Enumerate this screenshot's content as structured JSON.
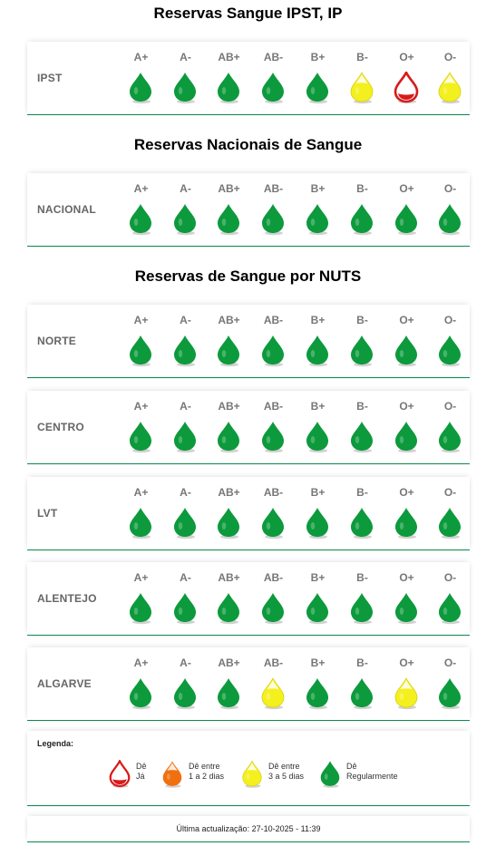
{
  "colors": {
    "green": "#0c9a3c",
    "yellow": "#f4f01e",
    "orange": "#f07010",
    "red": "#d81a1a",
    "line": "#0a8a4a"
  },
  "ipst": {
    "title": "Reservas Sangue IPST, IP",
    "rows": [
      {
        "name": "IPST",
        "levels": [
          "green",
          "green",
          "green",
          "green",
          "green",
          "yellow",
          "red",
          "yellow"
        ]
      }
    ]
  },
  "nacional": {
    "title": "Reservas Nacionais de Sangue",
    "rows": [
      {
        "name": "NACIONAL",
        "levels": [
          "green",
          "green",
          "green",
          "green",
          "green",
          "green",
          "green",
          "green"
        ]
      }
    ]
  },
  "nuts": {
    "title": "Reservas de Sangue por NUTS",
    "rows": [
      {
        "name": "NORTE",
        "levels": [
          "green",
          "green",
          "green",
          "green",
          "green",
          "green",
          "green",
          "green"
        ]
      },
      {
        "name": "CENTRO",
        "levels": [
          "green",
          "green",
          "green",
          "green",
          "green",
          "green",
          "green",
          "green"
        ]
      },
      {
        "name": "LVT",
        "levels": [
          "green",
          "green",
          "green",
          "green",
          "green",
          "green",
          "green",
          "green"
        ]
      },
      {
        "name": "ALENTEJO",
        "levels": [
          "green",
          "green",
          "green",
          "green",
          "green",
          "green",
          "green",
          "green"
        ]
      },
      {
        "name": "ALGARVE",
        "levels": [
          "green",
          "green",
          "green",
          "yellow",
          "green",
          "green",
          "yellow",
          "green"
        ]
      }
    ]
  },
  "blood_types": [
    "A+",
    "A-",
    "AB+",
    "AB-",
    "B+",
    "B-",
    "O+",
    "O-"
  ],
  "legend": {
    "title": "Legenda:",
    "items": [
      {
        "icon": "red-drop-icon",
        "level": "red",
        "line1": "Dê",
        "line2": "Já"
      },
      {
        "icon": "orange-drop-icon",
        "level": "orange",
        "line1": "Dê entre",
        "line2": "1 a 2 dias"
      },
      {
        "icon": "yellow-drop-icon",
        "level": "yellow",
        "line1": "Dê entre",
        "line2": "3 a 5 dias"
      },
      {
        "icon": "green-drop-icon",
        "level": "green",
        "line1": "Dê",
        "line2": "Regularmente"
      }
    ]
  },
  "footer": {
    "text": "Última actualização: 27-10-2025 - 11:39"
  }
}
